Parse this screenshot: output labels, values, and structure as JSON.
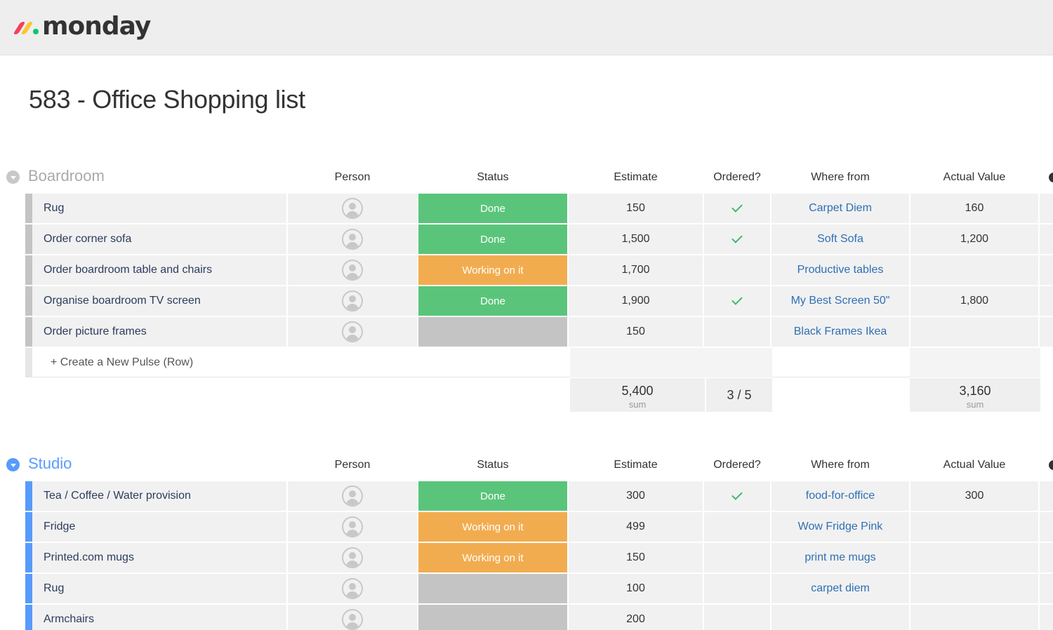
{
  "app": {
    "brand": "monday"
  },
  "board": {
    "title": "583 - Office Shopping list"
  },
  "columns": {
    "person": "Person",
    "status": "Status",
    "estimate": "Estimate",
    "ordered": "Ordered?",
    "where": "Where from",
    "actual": "Actual Value"
  },
  "colors": {
    "done": "#5ac57a",
    "working": "#f2ac50",
    "empty": "#c4c4c4",
    "boardroom_group": "#c4c4c4",
    "studio_group": "#579bfc",
    "link": "#2f6fb5"
  },
  "groups": [
    {
      "name": "Boardroom",
      "color": "#aaaaaa",
      "bar": "#c4c4c4",
      "rows": [
        {
          "name": "Rug",
          "status": "Done",
          "estimate": "150",
          "ordered": true,
          "where": "Carpet Diem",
          "actual": "160"
        },
        {
          "name": "Order corner sofa",
          "status": "Done",
          "estimate": "1,500",
          "ordered": true,
          "where": "Soft Sofa",
          "actual": "1,200"
        },
        {
          "name": "Order boardroom table and chairs",
          "status": "Working on it",
          "estimate": "1,700",
          "ordered": false,
          "where": "Productive tables",
          "actual": ""
        },
        {
          "name": "Organise boardroom TV screen",
          "status": "Done",
          "estimate": "1,900",
          "ordered": true,
          "where": "My Best Screen 50\"",
          "actual": "1,800"
        },
        {
          "name": "Order picture frames",
          "status": "",
          "estimate": "150",
          "ordered": false,
          "where": "Black Frames Ikea",
          "actual": ""
        }
      ],
      "new_row": "+ Create a New Pulse (Row)",
      "summary": {
        "estimate": "5,400",
        "estimate_unit": "sum",
        "ordered": "3 / 5",
        "actual": "3,160",
        "actual_unit": "sum"
      }
    },
    {
      "name": "Studio",
      "color": "#579bfc",
      "bar": "#579bfc",
      "rows": [
        {
          "name": "Tea / Coffee / Water provision",
          "status": "Done",
          "estimate": "300",
          "ordered": true,
          "where": "food-for-office",
          "actual": "300"
        },
        {
          "name": "Fridge",
          "status": "Working on it",
          "estimate": "499",
          "ordered": false,
          "where": "Wow Fridge Pink",
          "actual": ""
        },
        {
          "name": "Printed.com mugs",
          "status": "Working on it",
          "estimate": "150",
          "ordered": false,
          "where": "print me mugs",
          "actual": ""
        },
        {
          "name": "Rug",
          "status": "",
          "estimate": "100",
          "ordered": false,
          "where": "carpet diem",
          "actual": ""
        },
        {
          "name": "Armchairs",
          "status": "",
          "estimate": "200",
          "ordered": false,
          "where": "",
          "actual": ""
        }
      ]
    }
  ]
}
